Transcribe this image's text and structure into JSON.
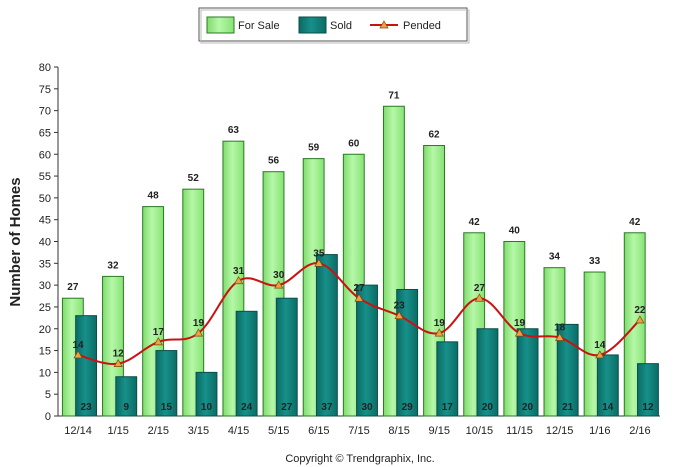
{
  "chart_data": {
    "type": "bar",
    "title": "",
    "xlabel": "",
    "ylabel": "Number of Homes",
    "ylim": [
      0,
      80
    ],
    "ytick_step": 5,
    "grid": false,
    "legend_position": "top-center",
    "categories": [
      "12/14",
      "1/15",
      "2/15",
      "3/15",
      "4/15",
      "5/15",
      "6/15",
      "7/15",
      "8/15",
      "9/15",
      "10/15",
      "11/15",
      "12/15",
      "1/16",
      "2/16"
    ],
    "series": [
      {
        "name": "For Sale",
        "kind": "bar",
        "color": "#99ee88",
        "edge": "#2a7a22",
        "values": [
          27,
          32,
          48,
          52,
          63,
          56,
          59,
          60,
          71,
          62,
          42,
          40,
          34,
          33,
          42
        ]
      },
      {
        "name": "Sold",
        "kind": "bar",
        "color": "#0d7a72",
        "edge": "#0a4f4a",
        "values": [
          23,
          9,
          15,
          10,
          24,
          27,
          37,
          30,
          29,
          17,
          20,
          20,
          21,
          14,
          12
        ]
      },
      {
        "name": "Pended",
        "kind": "line",
        "color": "#cc1111",
        "marker_fill": "#f2a040",
        "values": [
          14,
          12,
          17,
          19,
          31,
          30,
          35,
          27,
          23,
          19,
          27,
          19,
          18,
          14,
          22
        ]
      }
    ],
    "credit": "Copyright © Trendgraphix, Inc."
  }
}
